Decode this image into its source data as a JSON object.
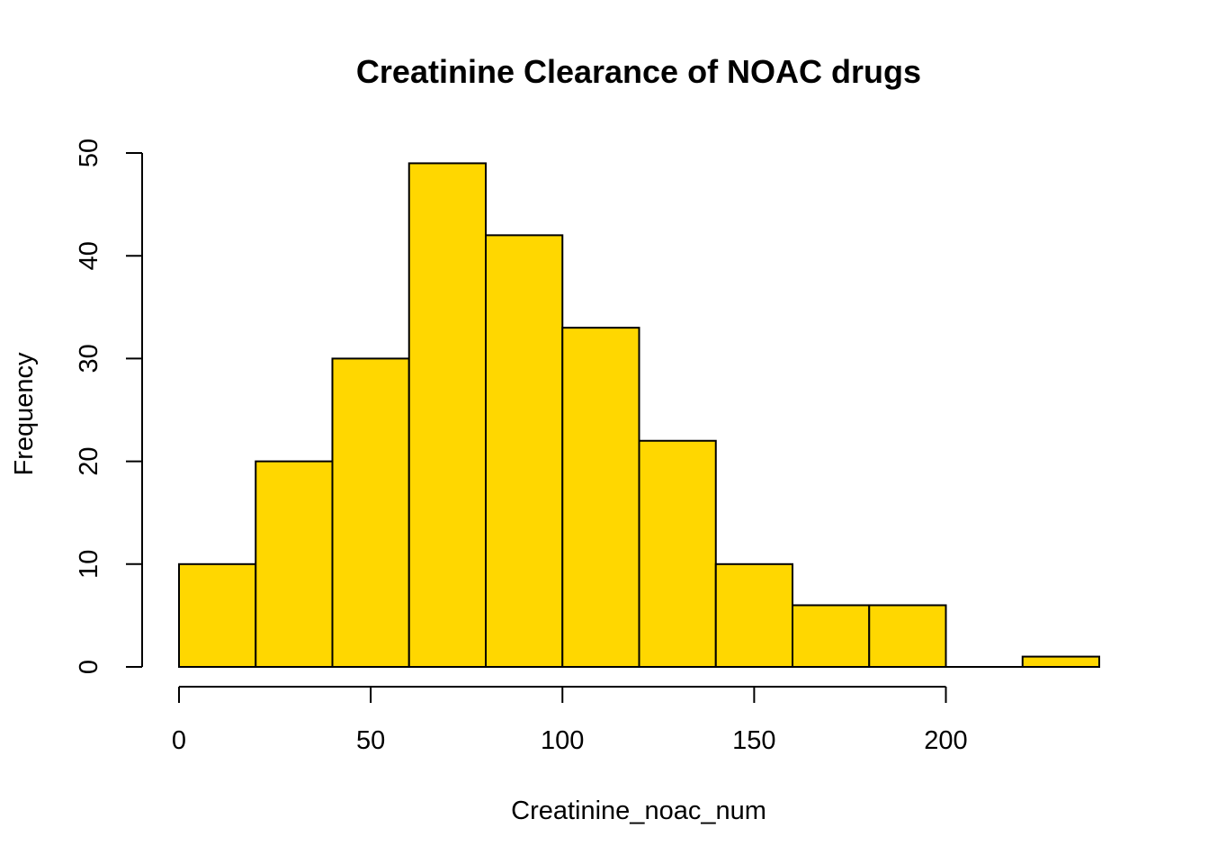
{
  "chart_data": {
    "type": "bar",
    "title": "Creatinine Clearance of NOAC drugs",
    "xlabel": "Creatinine_noac_num",
    "ylabel": "Frequency",
    "bin_edges": [
      0,
      20,
      40,
      60,
      80,
      100,
      120,
      140,
      160,
      180,
      200,
      220,
      240
    ],
    "values": [
      10,
      20,
      30,
      49,
      42,
      33,
      22,
      10,
      6,
      6,
      0,
      1
    ],
    "xlim": [
      0,
      240
    ],
    "ylim": [
      0,
      50
    ],
    "x_ticks": [
      0,
      50,
      100,
      150,
      200
    ],
    "y_ticks": [
      0,
      10,
      20,
      30,
      40,
      50
    ],
    "bar_color": "#FFD700",
    "grid": false,
    "legend": "none"
  }
}
